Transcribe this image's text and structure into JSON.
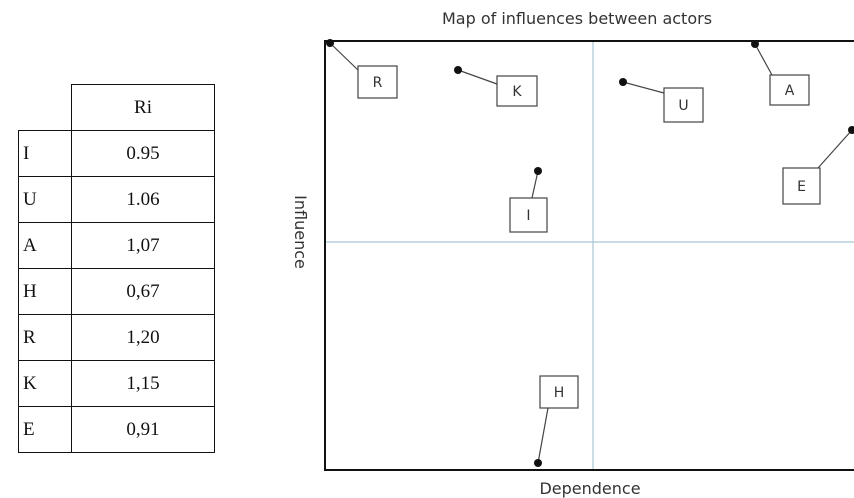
{
  "table": {
    "header": [
      "Ri"
    ],
    "rows": [
      [
        "I",
        "0.95"
      ],
      [
        "U",
        "1.06"
      ],
      [
        "A",
        "1,07"
      ],
      [
        "H",
        "0,67"
      ],
      [
        "R",
        "1,20"
      ],
      [
        "K",
        "1,15"
      ],
      [
        "E",
        "0,91"
      ]
    ]
  },
  "map": {
    "title": "Map of influences between actors",
    "x_label": "Dependence",
    "y_label": "Influence",
    "nodes": [
      {
        "label": "R"
      },
      {
        "label": "K"
      },
      {
        "label": "U"
      },
      {
        "label": "A"
      },
      {
        "label": "E"
      },
      {
        "label": "I"
      },
      {
        "label": "H"
      }
    ]
  }
}
